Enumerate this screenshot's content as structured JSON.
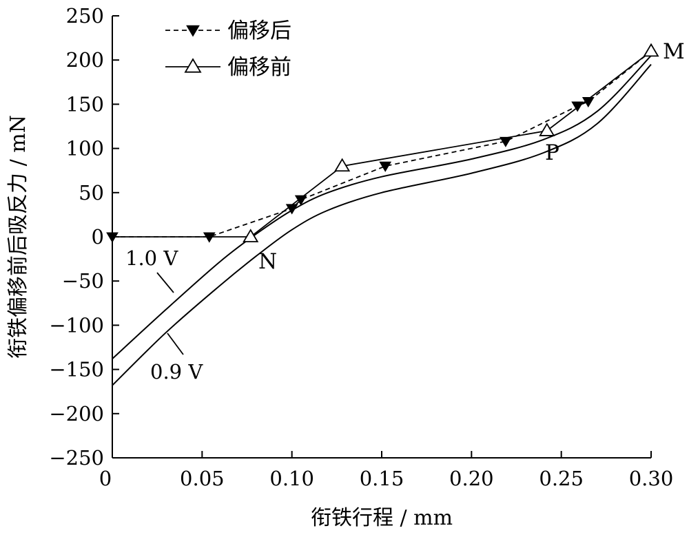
{
  "chart_data": {
    "type": "line",
    "xlabel": "衔铁行程 / mm",
    "ylabel": "衔铁偏移前后吸反力 / mN",
    "xlim": [
      0,
      0.3
    ],
    "ylim": [
      -250,
      250
    ],
    "xticks": [
      "0",
      "0.05",
      "0.10",
      "0.15",
      "0.20",
      "0.25",
      "0.30"
    ],
    "yticks": [
      "250",
      "200",
      "150",
      "100",
      "50",
      "0",
      "−50",
      "−100",
      "−150",
      "−200",
      "−250"
    ],
    "legend_position": "top-left",
    "series": [
      {
        "name": "偏移后",
        "style": "dashed",
        "marker": "filled-down-triangle",
        "x": [
          0.0,
          0.054,
          0.1,
          0.105,
          0.152,
          0.219,
          0.259,
          0.265,
          0.3
        ],
        "y": [
          0,
          0,
          32,
          42,
          80,
          108,
          148,
          153,
          210
        ]
      },
      {
        "name": "偏移前",
        "style": "solid",
        "marker": "hollow-up-triangle",
        "x": [
          0.0,
          0.077,
          0.128,
          0.242,
          0.3
        ],
        "y": [
          0,
          0,
          80,
          120,
          210
        ]
      },
      {
        "name": "1.0 V",
        "style": "solid",
        "marker": "none",
        "x": [
          0.0,
          0.03,
          0.06,
          0.08,
          0.1,
          0.12,
          0.15,
          0.2,
          0.24,
          0.27,
          0.3
        ],
        "y": [
          -138,
          -82,
          -28,
          3,
          30,
          50,
          68,
          88,
          110,
          142,
          205
        ]
      },
      {
        "name": "0.9 V",
        "style": "solid",
        "marker": "none",
        "x": [
          0.0,
          0.03,
          0.06,
          0.08,
          0.1,
          0.12,
          0.15,
          0.2,
          0.24,
          0.27,
          0.3
        ],
        "y": [
          -168,
          -108,
          -55,
          -22,
          8,
          30,
          50,
          72,
          95,
          128,
          195
        ]
      }
    ],
    "annotations": [
      {
        "text": "M",
        "x": 0.3,
        "y": 210
      },
      {
        "text": "P",
        "x": 0.242,
        "y": 120
      },
      {
        "text": "N",
        "x": 0.077,
        "y": 0
      },
      {
        "text": "1.0 V",
        "x": 0.04,
        "y": -70
      },
      {
        "text": "0.9 V",
        "x": 0.04,
        "y": -110
      }
    ]
  }
}
